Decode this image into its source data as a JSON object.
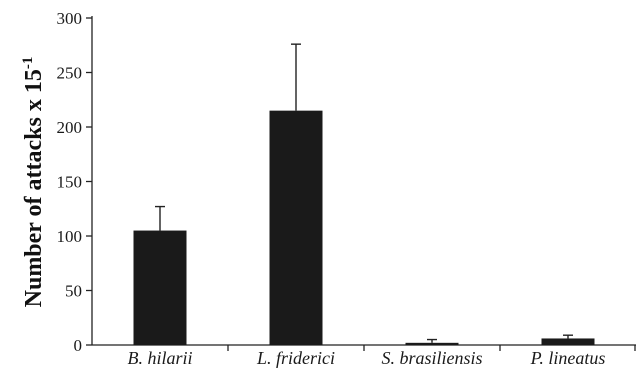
{
  "chart_data": {
    "type": "bar",
    "categories": [
      "B. hilarii",
      "L. friderici",
      "S. brasiliensis",
      "P. lineatus"
    ],
    "values": [
      105,
      215,
      2,
      6
    ],
    "error_upper": [
      127,
      276,
      5,
      9
    ],
    "ylabel_main": "Number of attacks x 15",
    "ylabel_superscript": "-1",
    "ylim": [
      0,
      300
    ],
    "yticks": [
      "0",
      "50",
      "100",
      "150",
      "200",
      "250",
      "300"
    ],
    "grid": false,
    "bar_color": "#1a1a1a"
  }
}
